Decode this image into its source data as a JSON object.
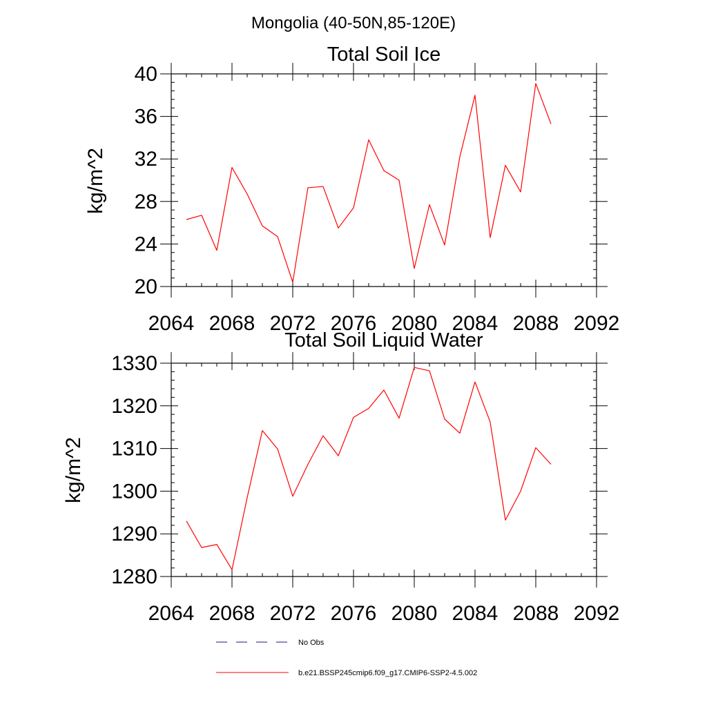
{
  "main_title": "Mongolia (40-50N,85-120E)",
  "chart_data": [
    {
      "type": "line",
      "title": "Total Soil Ice",
      "xlabel": "",
      "ylabel": "kg/m^2",
      "xlim": [
        2064,
        2092
      ],
      "ylim": [
        20,
        40
      ],
      "xticks": [
        2064,
        2068,
        2072,
        2076,
        2080,
        2084,
        2088,
        2092
      ],
      "yticks": [
        20,
        24,
        28,
        32,
        36,
        40
      ],
      "grid": false,
      "series": [
        {
          "name": "b.e21.BSSP245cmip6.f09_g17.CMIP6-SSP2-4.5.002",
          "color": "#ff0000",
          "x": [
            2065,
            2066,
            2067,
            2068,
            2069,
            2070,
            2071,
            2072,
            2073,
            2074,
            2075,
            2076,
            2077,
            2078,
            2079,
            2080,
            2081,
            2082,
            2083,
            2084,
            2085,
            2086,
            2087,
            2088,
            2089
          ],
          "values": [
            26.3,
            26.7,
            23.4,
            31.2,
            28.7,
            25.7,
            24.7,
            20.4,
            29.3,
            29.4,
            25.5,
            27.4,
            33.8,
            30.9,
            30.0,
            21.7,
            27.7,
            23.9,
            32.2,
            38.0,
            24.6,
            31.4,
            28.9,
            39.1,
            35.3
          ]
        }
      ]
    },
    {
      "type": "line",
      "title": "Total Soil Liquid Water",
      "xlabel": "",
      "ylabel": "kg/m^2",
      "xlim": [
        2064,
        2092
      ],
      "ylim": [
        1280,
        1330
      ],
      "xticks": [
        2064,
        2068,
        2072,
        2076,
        2080,
        2084,
        2088,
        2092
      ],
      "yticks": [
        1280,
        1290,
        1300,
        1310,
        1320,
        1330
      ],
      "grid": false,
      "series": [
        {
          "name": "b.e21.BSSP245cmip6.f09_g17.CMIP6-SSP2-4.5.002",
          "color": "#ff0000",
          "x": [
            2065,
            2066,
            2067,
            2068,
            2069,
            2070,
            2071,
            2072,
            2073,
            2074,
            2075,
            2076,
            2077,
            2078,
            2079,
            2080,
            2081,
            2082,
            2083,
            2084,
            2085,
            2086,
            2087,
            2088,
            2089
          ],
          "values": [
            1293.0,
            1286.8,
            1287.5,
            1281.6,
            1298.5,
            1314.2,
            1309.9,
            1298.8,
            1306.3,
            1313.0,
            1308.3,
            1317.3,
            1319.4,
            1323.7,
            1317.1,
            1329.0,
            1328.2,
            1316.9,
            1313.6,
            1325.6,
            1316.2,
            1293.2,
            1300.0,
            1310.2,
            1306.3
          ]
        }
      ]
    }
  ],
  "legend": {
    "placement": "bottom",
    "items": [
      {
        "label": "No Obs",
        "style": "dashed",
        "color": "#1a1a6e"
      },
      {
        "label": "b.e21.BSSP245cmip6.f09_g17.CMIP6-SSP2-4.5.002",
        "style": "solid",
        "color": "#ff0000"
      }
    ]
  }
}
